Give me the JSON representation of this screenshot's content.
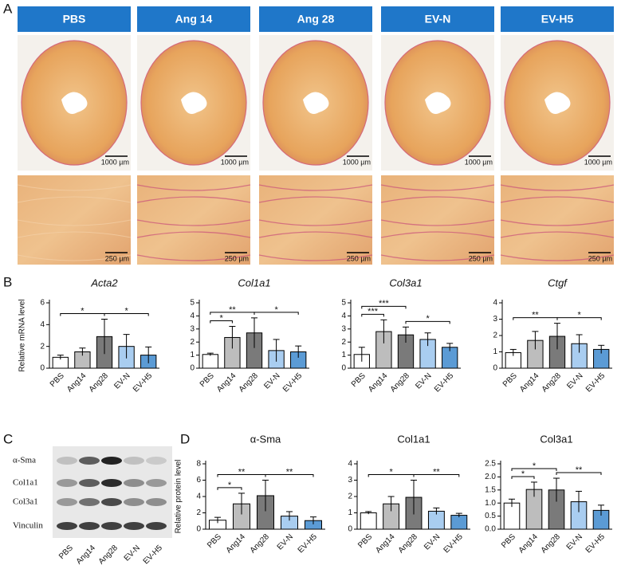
{
  "panel_labels": [
    "A",
    "B",
    "C",
    "D"
  ],
  "histology": {
    "groups": [
      "PBS",
      "Ang 14",
      "Ang 28",
      "EV-N",
      "EV-H5"
    ],
    "scale_bars": [
      "1000 µm",
      "250 µm"
    ]
  },
  "western": {
    "bands": [
      "α-Sma",
      "Col1a1",
      "Col3a1",
      "Vinculin"
    ],
    "lanes": [
      "PBS",
      "Ang14",
      "Ang28",
      "EV-N",
      "EV-H5"
    ]
  },
  "chart_data": [
    {
      "type": "bar",
      "title": "Acta2",
      "ylabel": "Relative mRNA level",
      "categories": [
        "PBS",
        "Ang14",
        "Ang28",
        "EV-N",
        "EV-H5"
      ],
      "values": [
        1.0,
        1.5,
        2.9,
        2.0,
        1.2
      ],
      "errors": [
        0.2,
        0.35,
        1.6,
        1.1,
        0.75
      ],
      "colors": [
        "#ffffff",
        "#bdbdbd",
        "#7a7a7a",
        "#a9cdf0",
        "#5b9bd5"
      ],
      "ylim": [
        0,
        6
      ],
      "yticks": [
        0,
        2,
        4,
        6
      ],
      "significance": [
        {
          "from": 0,
          "to": 2,
          "label": "*"
        },
        {
          "from": 2,
          "to": 4,
          "label": "*"
        }
      ]
    },
    {
      "type": "bar",
      "title": "Col1a1",
      "categories": [
        "PBS",
        "Ang14",
        "Ang28",
        "EV-N",
        "EV-H5"
      ],
      "values": [
        1.05,
        2.35,
        2.7,
        1.35,
        1.25
      ],
      "errors": [
        0.1,
        0.85,
        1.15,
        0.85,
        0.45
      ],
      "colors": [
        "#ffffff",
        "#bdbdbd",
        "#7a7a7a",
        "#a9cdf0",
        "#5b9bd5"
      ],
      "ylim": [
        0,
        5
      ],
      "yticks": [
        0,
        1,
        2,
        3,
        4,
        5
      ],
      "significance": [
        {
          "from": 0,
          "to": 1,
          "label": "*"
        },
        {
          "from": 0,
          "to": 2,
          "label": "**"
        },
        {
          "from": 2,
          "to": 4,
          "label": "*"
        }
      ]
    },
    {
      "type": "bar",
      "title": "Col3a1",
      "categories": [
        "PBS",
        "Ang14",
        "Ang28",
        "EV-N",
        "EV-H5"
      ],
      "values": [
        1.05,
        2.8,
        2.55,
        2.2,
        1.6
      ],
      "errors": [
        0.55,
        0.9,
        0.6,
        0.5,
        0.3
      ],
      "colors": [
        "#ffffff",
        "#bdbdbd",
        "#7a7a7a",
        "#a9cdf0",
        "#5b9bd5"
      ],
      "ylim": [
        0,
        5
      ],
      "yticks": [
        0,
        1,
        2,
        3,
        4,
        5
      ],
      "significance": [
        {
          "from": 0,
          "to": 1,
          "label": "***"
        },
        {
          "from": 0,
          "to": 2,
          "label": "***"
        },
        {
          "from": 2,
          "to": 4,
          "label": "*"
        }
      ]
    },
    {
      "type": "bar",
      "title": "Ctgf",
      "categories": [
        "PBS",
        "Ang14",
        "Ang28",
        "EV-N",
        "EV-H5"
      ],
      "values": [
        0.95,
        1.7,
        1.95,
        1.5,
        1.15
      ],
      "errors": [
        0.2,
        0.55,
        0.8,
        0.55,
        0.25
      ],
      "colors": [
        "#ffffff",
        "#bdbdbd",
        "#7a7a7a",
        "#a9cdf0",
        "#5b9bd5"
      ],
      "ylim": [
        0,
        4
      ],
      "yticks": [
        0,
        1,
        2,
        3,
        4
      ],
      "significance": [
        {
          "from": 0,
          "to": 2,
          "label": "**"
        },
        {
          "from": 2,
          "to": 4,
          "label": "*"
        }
      ]
    },
    {
      "type": "bar",
      "title": "α-Sma",
      "ylabel": "Relative protein level",
      "categories": [
        "PBS",
        "Ang14",
        "Ang28",
        "EV-N",
        "EV-H5"
      ],
      "values": [
        1.1,
        3.1,
        4.1,
        1.6,
        1.05
      ],
      "errors": [
        0.35,
        1.3,
        1.9,
        0.55,
        0.45
      ],
      "colors": [
        "#ffffff",
        "#bdbdbd",
        "#7a7a7a",
        "#a9cdf0",
        "#5b9bd5"
      ],
      "ylim": [
        0,
        8
      ],
      "yticks": [
        0,
        2,
        4,
        6,
        8
      ],
      "significance": [
        {
          "from": 0,
          "to": 1,
          "label": "*"
        },
        {
          "from": 0,
          "to": 2,
          "label": "**"
        },
        {
          "from": 2,
          "to": 4,
          "label": "**"
        }
      ]
    },
    {
      "type": "bar",
      "title": "Col1a1",
      "categories": [
        "PBS",
        "Ang14",
        "Ang28",
        "EV-N",
        "EV-H5"
      ],
      "values": [
        1.0,
        1.55,
        1.95,
        1.1,
        0.85
      ],
      "errors": [
        0.08,
        0.45,
        1.05,
        0.2,
        0.12
      ],
      "colors": [
        "#ffffff",
        "#bdbdbd",
        "#7a7a7a",
        "#a9cdf0",
        "#5b9bd5"
      ],
      "ylim": [
        0,
        4
      ],
      "yticks": [
        0,
        1,
        2,
        3,
        4
      ],
      "significance": [
        {
          "from": 0,
          "to": 2,
          "label": "*"
        },
        {
          "from": 2,
          "to": 4,
          "label": "**"
        }
      ]
    },
    {
      "type": "bar",
      "title": "Col3a1",
      "categories": [
        "PBS",
        "Ang14",
        "Ang28",
        "EV-N",
        "EV-H5"
      ],
      "values": [
        1.0,
        1.52,
        1.5,
        1.05,
        0.72
      ],
      "errors": [
        0.15,
        0.28,
        0.45,
        0.4,
        0.2
      ],
      "colors": [
        "#ffffff",
        "#bdbdbd",
        "#7a7a7a",
        "#a9cdf0",
        "#5b9bd5"
      ],
      "ylim": [
        0,
        2.5
      ],
      "yticks": [
        {
          "value": 0,
          "label": "0.0"
        },
        {
          "value": 0.5,
          "label": "0.5"
        },
        {
          "value": 1,
          "label": "1.0"
        },
        {
          "value": 1.5,
          "label": "1.5"
        },
        {
          "value": 2,
          "label": "2.0"
        },
        {
          "value": 2.5,
          "label": "2.5"
        }
      ],
      "significance": [
        {
          "from": 0,
          "to": 1,
          "label": "*"
        },
        {
          "from": 0,
          "to": 2,
          "label": "*"
        },
        {
          "from": 2,
          "to": 4,
          "label": "**"
        }
      ]
    }
  ]
}
